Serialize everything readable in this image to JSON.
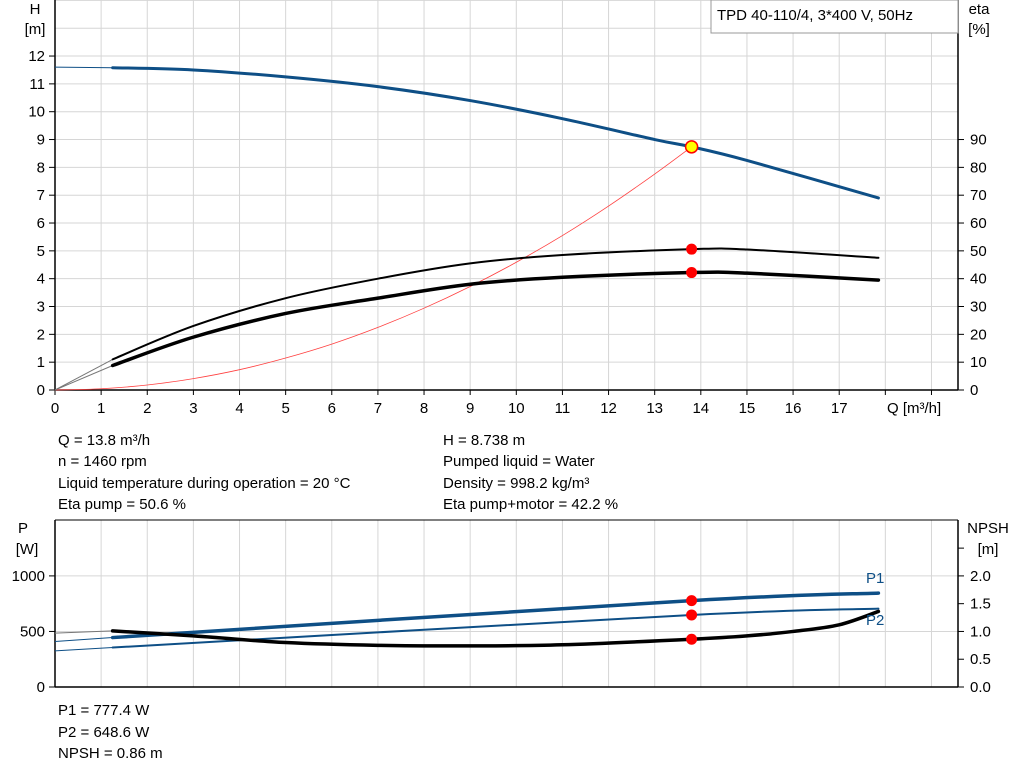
{
  "colors": {
    "head": "#0e4f86",
    "eta": "#000000",
    "system": "#ff4040",
    "power": "#0e4f86",
    "npsh": "#000000",
    "duty_point": "#ff0000",
    "duty_point_fill": "#ffff00"
  },
  "legend_box": "TPD 40-110/4, 3*400 V, 50Hz",
  "info": {
    "left": [
      "Q = 13.8 m³/h",
      "n = 1460 rpm",
      "Liquid temperature during operation = 20 °C",
      "Eta pump = 50.6 %"
    ],
    "right": [
      "H = 8.738 m",
      "Pumped liquid = Water",
      "Density = 998.2 kg/m³",
      "Eta pump+motor = 42.2 %"
    ],
    "bottom": [
      "P1 = 777.4 W",
      "P2 = 648.6 W",
      "NPSH = 0.86 m"
    ]
  },
  "chart_data": [
    {
      "type": "line",
      "title": "",
      "xlabel": "Q [m³/h]",
      "ylabel_left": [
        "H",
        "[m]"
      ],
      "ylabel_right": [
        "eta",
        "[%]"
      ],
      "xlim": [
        0,
        19.5
      ],
      "ylim_left": [
        0,
        14
      ],
      "ylim_right": [
        0,
        140
      ],
      "xticks": [
        "0",
        "1",
        "2",
        "3",
        "4",
        "5",
        "6",
        "7",
        "8",
        "9",
        "10",
        "11",
        "12",
        "13",
        "14",
        "15",
        "16",
        "17"
      ],
      "yticks_left": [
        "0",
        "1",
        "2",
        "3",
        "4",
        "5",
        "6",
        "7",
        "8",
        "9",
        "10",
        "11",
        "12"
      ],
      "yticks_right": [
        "0",
        "10",
        "20",
        "30",
        "40",
        "50",
        "60",
        "70",
        "80",
        "90"
      ],
      "grid": true,
      "series": [
        {
          "key": "H",
          "axis": "left",
          "x": [
            0,
            1.25,
            3,
            5,
            7,
            9,
            11,
            13,
            13.8,
            15,
            17.85
          ],
          "y": [
            11.6,
            11.58,
            11.5,
            11.25,
            10.9,
            10.4,
            9.75,
            9.0,
            8.738,
            8.25,
            6.9
          ]
        },
        {
          "key": "eta_pump",
          "axis": "right",
          "x": [
            0,
            1.25,
            3,
            5,
            7,
            9,
            11,
            13.8,
            15,
            17.85
          ],
          "y": [
            0,
            11,
            23,
            33,
            40,
            45.5,
            48.5,
            50.6,
            50.5,
            47.5
          ]
        },
        {
          "key": "eta_pump_motor",
          "axis": "right",
          "x": [
            0,
            1.25,
            3,
            5,
            7,
            9,
            11,
            13.8,
            15,
            17.85
          ],
          "y": [
            0,
            8.8,
            19,
            27.5,
            33,
            38,
            40.5,
            42.2,
            42,
            39.5
          ]
        },
        {
          "key": "system",
          "axis": "left",
          "x": [
            0,
            1,
            2,
            3,
            4,
            5,
            6,
            7,
            8,
            9,
            10,
            11,
            12,
            13,
            13.8
          ],
          "y": [
            0,
            0.046,
            0.18,
            0.41,
            0.73,
            1.15,
            1.65,
            2.25,
            2.94,
            3.72,
            4.59,
            5.55,
            6.61,
            7.76,
            8.738
          ]
        }
      ],
      "duty_points": [
        {
          "x": 13.8,
          "y": 8.738,
          "axis": "left"
        },
        {
          "x": 13.8,
          "y": 50.6,
          "axis": "right"
        },
        {
          "x": 13.8,
          "y": 42.2,
          "axis": "right"
        }
      ]
    },
    {
      "type": "line",
      "title": "",
      "ylabel_left": [
        "P",
        "[W]"
      ],
      "ylabel_right": [
        "NPSH",
        "[m]"
      ],
      "xlim": [
        0,
        19.5
      ],
      "ylim_left": [
        0,
        1500
      ],
      "ylim_right": [
        0,
        3.0
      ],
      "yticks_left": [
        "0",
        "500",
        "1000"
      ],
      "yticks_right": [
        "0.0",
        "0.5",
        "1.0",
        "1.5",
        "2.0"
      ],
      "grid": true,
      "series": [
        {
          "key": "P1",
          "name": "P1",
          "axis": "left",
          "x": [
            0,
            1.25,
            13.8,
            17.85
          ],
          "y": [
            410,
            445,
            777.4,
            845
          ]
        },
        {
          "key": "P2",
          "name": "P2",
          "axis": "left",
          "x": [
            0,
            1.25,
            13.8,
            17.85
          ],
          "y": [
            325,
            355,
            648.6,
            705
          ]
        },
        {
          "key": "NPSH",
          "axis": "right",
          "x": [
            0,
            1.25,
            3,
            5,
            7,
            9,
            11,
            13.8,
            15,
            16,
            17,
            17.85
          ],
          "y": [
            0.97,
            1.01,
            0.92,
            0.8,
            0.75,
            0.74,
            0.76,
            0.86,
            0.92,
            1.0,
            1.12,
            1.36
          ]
        }
      ],
      "duty_points": [
        {
          "x": 13.8,
          "y": 777.4,
          "axis": "left"
        },
        {
          "x": 13.8,
          "y": 648.6,
          "axis": "left"
        },
        {
          "x": 13.8,
          "y": 0.86,
          "axis": "right"
        }
      ]
    }
  ]
}
